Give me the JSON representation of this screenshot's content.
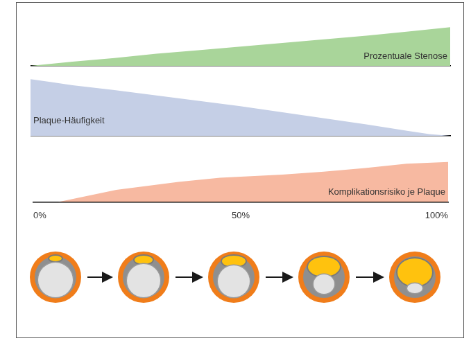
{
  "chart_data": [
    {
      "type": "area",
      "title": "Prozentuale Stenose",
      "x": [
        0,
        10,
        20,
        30,
        40,
        50,
        60,
        70,
        80,
        90,
        100
      ],
      "values": [
        0,
        7,
        13,
        20,
        26,
        32,
        38,
        44,
        50,
        57,
        64
      ],
      "color": "#a9d59a",
      "xlim": [
        0,
        100
      ],
      "ylim": [
        0,
        100
      ],
      "tick_labels": false
    },
    {
      "type": "area",
      "title": "Plaque-Häufigkeit",
      "x": [
        0,
        5,
        10,
        20,
        30,
        40,
        50,
        60,
        70,
        80,
        90,
        95,
        100
      ],
      "values": [
        94,
        89,
        84,
        76,
        67,
        58,
        49,
        39,
        29,
        19,
        8,
        3,
        0
      ],
      "color": "#c5cfe6",
      "xlim": [
        0,
        100
      ],
      "ylim": [
        0,
        100
      ],
      "tick_labels": false
    },
    {
      "type": "area",
      "title": "Komplikationsrisiko je Plaque",
      "x": [
        0,
        6,
        20,
        35,
        45,
        60,
        70,
        80,
        90,
        100
      ],
      "values": [
        0,
        0,
        20,
        33,
        40,
        45,
        50,
        56,
        63,
        66
      ],
      "color": "#f7b9a1",
      "xlim": [
        0,
        100
      ],
      "ylim": [
        0,
        100
      ],
      "xticks": [
        {
          "value": 0,
          "label": "0%"
        },
        {
          "value": 50,
          "label": "50%"
        },
        {
          "value": 100,
          "label": "100%"
        }
      ],
      "tick_labels": "x"
    }
  ]
}
